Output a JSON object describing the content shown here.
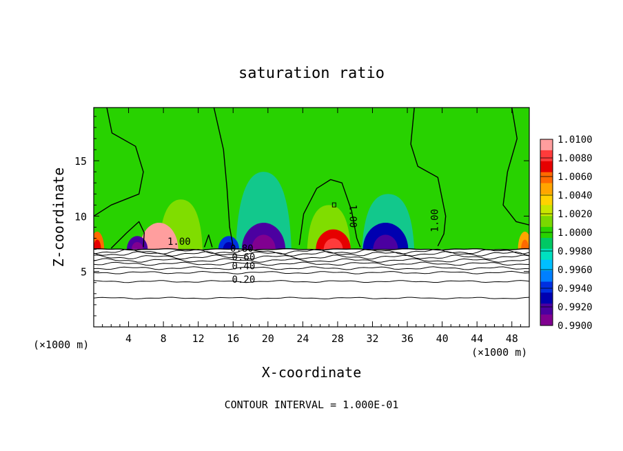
{
  "chart_data": {
    "type": "heatmap",
    "title": "saturation ratio",
    "xlabel": "X-coordinate",
    "ylabel": "Z-coordinate",
    "x_unit_left": "(×1000 m)",
    "x_unit_right": "(×1000 m)",
    "footer": "CONTOUR INTERVAL = 1.000E-01",
    "xlim": [
      0,
      50
    ],
    "ylim": [
      0,
      19.8
    ],
    "x_ticks": [
      4,
      8,
      12,
      16,
      20,
      24,
      28,
      32,
      36,
      40,
      44,
      48
    ],
    "y_ticks": [
      5,
      10,
      15
    ],
    "colorbar": {
      "range": [
        0.99,
        1.01
      ],
      "labels": [
        "1.0100",
        "1.0080",
        "1.0060",
        "1.0040",
        "1.0020",
        "1.0000",
        "0.9980",
        "0.9960",
        "0.9940",
        "0.9920",
        "0.9900"
      ],
      "colors": [
        "#ff9e9e",
        "#ff3b3b",
        "#e60000",
        "#ff6a00",
        "#ffa500",
        "#ffd200",
        "#c8e600",
        "#7ad800",
        "#28d200",
        "#00c864",
        "#00e0c0",
        "#00bfff",
        "#0080ff",
        "#0030e0",
        "#0000b0",
        "#4b00a0",
        "#800090"
      ]
    },
    "contour_labels": [
      {
        "text": "1.00",
        "x": 9.8,
        "z": 7.4
      },
      {
        "text": "1.00",
        "x": 29.4,
        "z": 10.0
      },
      {
        "text": "1.00",
        "x": 39.5,
        "z": 9.6
      },
      {
        "text": "0.80",
        "x": 17.0,
        "z": 6.8
      },
      {
        "text": "0.60",
        "x": 17.2,
        "z": 6.0
      },
      {
        "text": "0.40",
        "x": 17.2,
        "z": 5.2
      },
      {
        "text": "0.20",
        "x": 17.2,
        "z": 4.0
      }
    ],
    "contour_values": [
      0.2,
      0.4,
      0.6,
      0.8,
      1.0
    ],
    "layers": [
      {
        "z": 2.6
      },
      {
        "z": 4.1
      },
      {
        "z": 4.9
      },
      {
        "z": 5.3
      },
      {
        "z": 5.7
      },
      {
        "z": 6.0
      },
      {
        "z": 6.3
      },
      {
        "z": 6.6
      },
      {
        "z": 6.8
      }
    ],
    "surface_z": 7.0,
    "dry_features": [
      {
        "x": 7.5,
        "dz": 0.6,
        "w": 2.2,
        "value": 1.009
      },
      {
        "x": 27.5,
        "dz": 0.45,
        "w": 2.0,
        "value": 1.007
      },
      {
        "x": 0.4,
        "dz": 0.4,
        "w": 0.8,
        "value": 1.006
      },
      {
        "x": 49.5,
        "dz": 0.4,
        "w": 0.8,
        "value": 1.005
      },
      {
        "x": 5.0,
        "dz": 0.3,
        "w": 1.2,
        "value": 0.992
      },
      {
        "x": 19.5,
        "dz": 0.6,
        "w": 2.5,
        "value": 0.992
      },
      {
        "x": 33.5,
        "dz": 0.6,
        "w": 2.6,
        "value": 0.993
      },
      {
        "x": 15.5,
        "dz": 0.3,
        "w": 1.2,
        "value": 0.994
      }
    ],
    "plumes": [
      {
        "x": 19.5,
        "w": 3.2,
        "top": 14.0,
        "value": 0.996
      },
      {
        "x": 33.8,
        "w": 3.0,
        "top": 12.0,
        "value": 0.997
      },
      {
        "x": 10.0,
        "w": 2.5,
        "top": 11.5,
        "value": 1.002
      },
      {
        "x": 27.0,
        "w": 2.5,
        "top": 11.0,
        "value": 1.002
      }
    ],
    "background_value": 1.0004
  }
}
